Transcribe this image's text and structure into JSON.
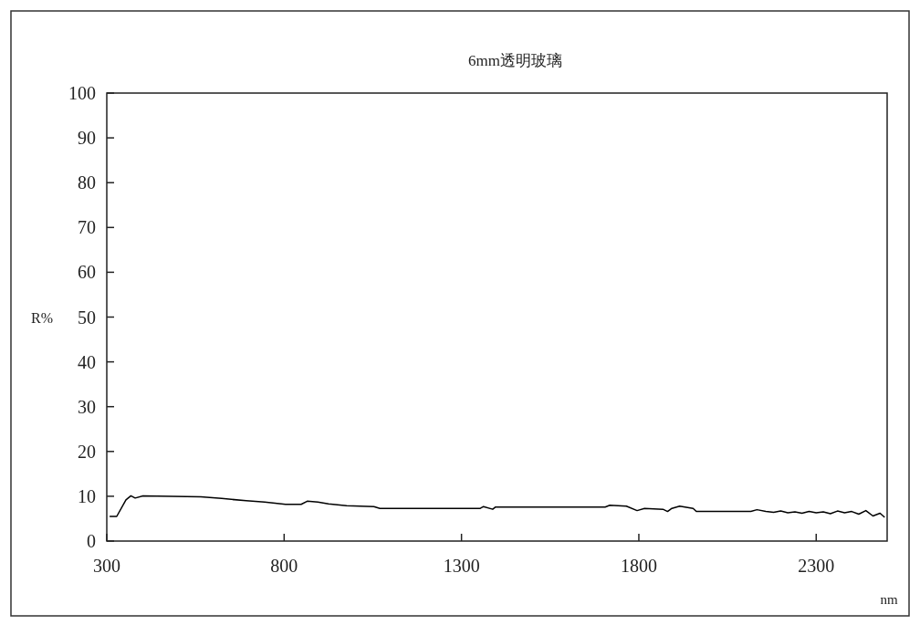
{
  "chart_data": {
    "type": "line",
    "title": "6mm透明玻璃",
    "xlabel": "nm",
    "ylabel": "R%",
    "xlim": [
      300,
      2500
    ],
    "ylim": [
      0,
      100
    ],
    "xticks": [
      300,
      800,
      1300,
      1800,
      2300
    ],
    "yticks": [
      0,
      10,
      20,
      30,
      40,
      50,
      60,
      70,
      80,
      90,
      100
    ],
    "grid": false,
    "series": [
      {
        "color": "#000000",
        "x": [
          308,
          328,
          354,
          368,
          380,
          402,
          565,
          624,
          693,
          745,
          804,
          848,
          865,
          895,
          925,
          976,
          1053,
          1070,
          1353,
          1362,
          1388,
          1396,
          1705,
          1718,
          1765,
          1795,
          1816,
          1868,
          1881,
          1893,
          1915,
          1953,
          1962,
          2116,
          2133,
          2158,
          2180,
          2200,
          2220,
          2240,
          2260,
          2280,
          2300,
          2320,
          2340,
          2360,
          2380,
          2400,
          2420,
          2440,
          2460,
          2480,
          2493
        ],
        "values": [
          5.5,
          5.5,
          9.2,
          10.1,
          9.6,
          10.1,
          9.9,
          9.5,
          9.0,
          8.7,
          8.2,
          8.2,
          8.9,
          8.7,
          8.3,
          7.9,
          7.7,
          7.3,
          7.3,
          7.7,
          7.1,
          7.6,
          7.6,
          8.0,
          7.8,
          6.8,
          7.3,
          7.1,
          6.6,
          7.3,
          7.8,
          7.3,
          6.6,
          6.6,
          7.0,
          6.6,
          6.4,
          6.7,
          6.3,
          6.5,
          6.2,
          6.6,
          6.3,
          6.5,
          6.1,
          6.7,
          6.3,
          6.6,
          6.0,
          6.8,
          5.6,
          6.2,
          5.3
        ]
      }
    ]
  }
}
